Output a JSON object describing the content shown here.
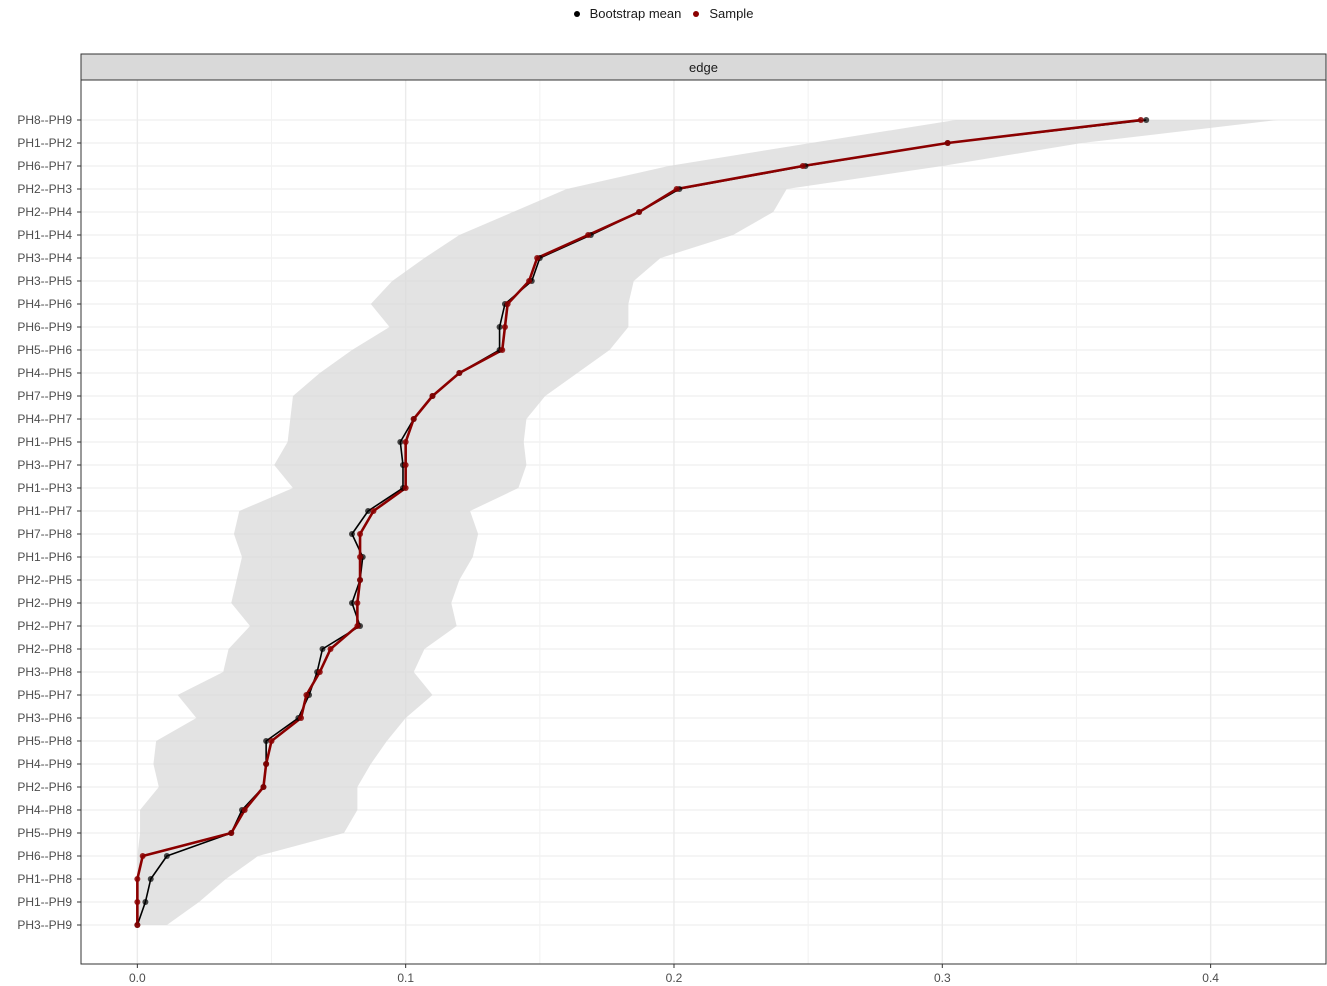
{
  "colors": {
    "bootstrap_mean": "#000000",
    "sample": "#8b0000",
    "ci_band": "#d9d9d9",
    "strip_bg": "#d9d9d9",
    "grid": "#ebebeb"
  },
  "chart_data": {
    "type": "line",
    "strip_label": "edge",
    "legend": {
      "position": "top",
      "entries": [
        "Bootstrap mean",
        "Sample"
      ]
    },
    "categories": [
      "PH8--PH9",
      "PH1--PH2",
      "PH6--PH7",
      "PH2--PH3",
      "PH2--PH4",
      "PH1--PH4",
      "PH3--PH4",
      "PH3--PH5",
      "PH4--PH6",
      "PH6--PH9",
      "PH5--PH6",
      "PH4--PH5",
      "PH7--PH9",
      "PH4--PH7",
      "PH1--PH5",
      "PH3--PH7",
      "PH1--PH3",
      "PH1--PH7",
      "PH7--PH8",
      "PH1--PH6",
      "PH2--PH5",
      "PH2--PH9",
      "PH2--PH7",
      "PH2--PH8",
      "PH3--PH8",
      "PH5--PH7",
      "PH3--PH6",
      "PH5--PH8",
      "PH4--PH9",
      "PH2--PH6",
      "PH4--PH8",
      "PH5--PH9",
      "PH6--PH8",
      "PH1--PH8",
      "PH1--PH9",
      "PH3--PH9"
    ],
    "xlim": [
      -0.021,
      0.443
    ],
    "x_ticks": [
      "0.0",
      "0.1",
      "0.2",
      "0.3",
      "0.4"
    ],
    "x_tick_values": [
      0,
      0.1,
      0.2,
      0.3,
      0.4
    ],
    "grid": true,
    "series": [
      {
        "name": "Bootstrap mean",
        "values": [
          0.376,
          0.302,
          0.249,
          0.202,
          0.187,
          0.169,
          0.15,
          0.147,
          0.137,
          0.135,
          0.135,
          0.12,
          0.11,
          0.103,
          0.098,
          0.099,
          0.099,
          0.086,
          0.08,
          0.084,
          0.083,
          0.08,
          0.083,
          0.069,
          0.067,
          0.064,
          0.06,
          0.048,
          0.048,
          0.047,
          0.039,
          0.035,
          0.011,
          0.005,
          0.003,
          0.0
        ]
      },
      {
        "name": "Sample",
        "values": [
          0.374,
          0.302,
          0.248,
          0.201,
          0.187,
          0.168,
          0.149,
          0.146,
          0.138,
          0.137,
          0.136,
          0.12,
          0.11,
          0.103,
          0.1,
          0.1,
          0.1,
          0.088,
          0.083,
          0.083,
          0.083,
          0.082,
          0.082,
          0.072,
          0.068,
          0.063,
          0.061,
          0.05,
          0.048,
          0.047,
          0.04,
          0.035,
          0.002,
          0.0,
          0.0,
          0.0
        ]
      }
    ],
    "ci": {
      "lower": [
        0.305,
        0.251,
        0.198,
        0.16,
        0.14,
        0.12,
        0.107,
        0.095,
        0.087,
        0.094,
        0.08,
        0.068,
        0.058,
        0.057,
        0.056,
        0.051,
        0.058,
        0.038,
        0.036,
        0.039,
        0.037,
        0.035,
        0.042,
        0.034,
        0.032,
        0.015,
        0.022,
        0.007,
        0.006,
        0.008,
        0.001,
        0.001,
        0.0,
        0.0,
        0.0,
        0.0
      ],
      "upper": [
        0.425,
        0.352,
        0.3,
        0.242,
        0.237,
        0.222,
        0.195,
        0.185,
        0.183,
        0.183,
        0.176,
        0.164,
        0.152,
        0.145,
        0.144,
        0.145,
        0.142,
        0.124,
        0.127,
        0.125,
        0.12,
        0.117,
        0.119,
        0.107,
        0.103,
        0.11,
        0.1,
        0.093,
        0.087,
        0.082,
        0.082,
        0.077,
        0.045,
        0.033,
        0.023,
        0.011
      ]
    }
  }
}
